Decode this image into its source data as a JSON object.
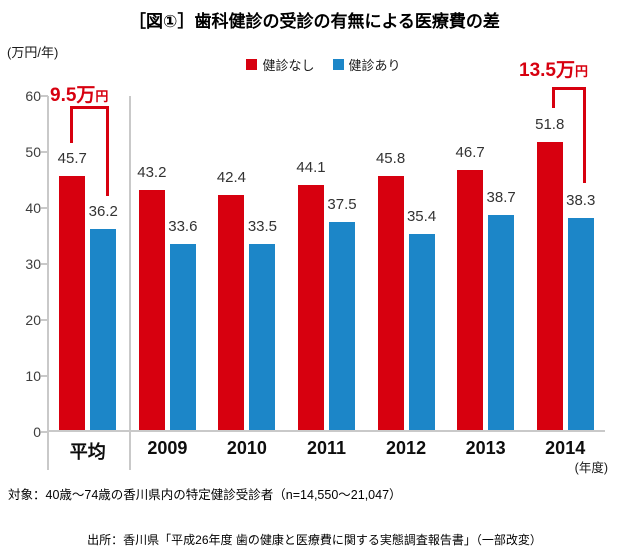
{
  "title": "［図①］歯科健診の受診の有無による医療費の差",
  "y_axis_title": "(万円/年)",
  "legend": [
    {
      "label": "健診なし",
      "color": "#d7000f"
    },
    {
      "label": "健診あり",
      "color": "#1c86c8"
    }
  ],
  "annotations": {
    "avg": {
      "value": "9.5万",
      "unit": "円",
      "color": "#d7000f"
    },
    "y2014": {
      "value": "13.5万",
      "unit": "円",
      "color": "#d7000f"
    }
  },
  "x_axis_unit_note": "(年度)",
  "footnote": "対象：40歳～74歳の香川県内の特定健診受診者（n=14,550～21,047）",
  "source": "出所：香川県「平成26年度 歯の健康と医療費に関する実態調査報告書」（一部改変）",
  "chart_data": {
    "type": "bar",
    "title": "［図①］歯科健診の受診の有無による医療費の差",
    "categories": [
      "平均",
      "2009",
      "2010",
      "2011",
      "2012",
      "2013",
      "2014"
    ],
    "series": [
      {
        "name": "健診なし",
        "color": "#d7000f",
        "values": [
          45.7,
          43.2,
          42.4,
          44.1,
          45.8,
          46.7,
          51.8
        ]
      },
      {
        "name": "健診あり",
        "color": "#1c86c8",
        "values": [
          36.2,
          33.6,
          33.5,
          37.5,
          35.4,
          38.7,
          38.3
        ]
      }
    ],
    "ylabel": "(万円/年)",
    "xlabel": "(年度)",
    "ylim": [
      0,
      60
    ],
    "yticks": [
      0,
      10,
      20,
      30,
      40,
      50,
      60
    ],
    "grid": false,
    "legend_position": "top",
    "data_labels": true,
    "annotations": [
      {
        "text": "9.5万円",
        "category": "平均"
      },
      {
        "text": "13.5万円",
        "category": "2014"
      }
    ]
  }
}
